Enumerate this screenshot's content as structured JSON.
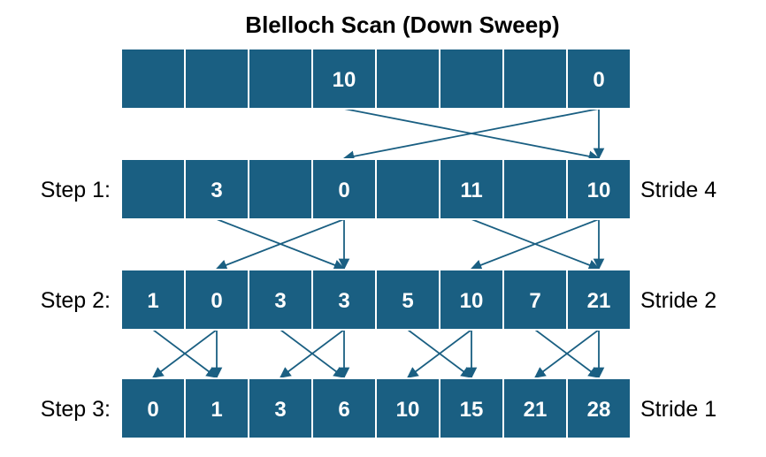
{
  "title": "Blelloch Scan (Down Sweep)",
  "colors": {
    "cell_fill": "#1a5f82",
    "cell_border": "#ffffff",
    "arrow": "#1a5f82",
    "text_on_cell": "#ffffff"
  },
  "rows": [
    {
      "label": "",
      "stride": "",
      "cells": [
        "",
        "",
        "",
        "10",
        "",
        "",
        "",
        "0"
      ]
    },
    {
      "label": "Step 1:",
      "stride": "Stride 4",
      "cells": [
        "",
        "3",
        "",
        "0",
        "",
        "11",
        "",
        "10"
      ]
    },
    {
      "label": "Step 2:",
      "stride": "Stride 2",
      "cells": [
        "1",
        "0",
        "3",
        "3",
        "5",
        "10",
        "7",
        "21"
      ]
    },
    {
      "label": "Step 3:",
      "stride": "Stride 1",
      "cells": [
        "0",
        "1",
        "3",
        "6",
        "10",
        "15",
        "21",
        "28"
      ]
    }
  ],
  "arrows": [
    {
      "from_row": 0,
      "from_col": 3,
      "to_row": 1,
      "to_col": 7
    },
    {
      "from_row": 0,
      "from_col": 7,
      "to_row": 1,
      "to_col": 3
    },
    {
      "from_row": 0,
      "from_col": 7,
      "to_row": 1,
      "to_col": 7
    },
    {
      "from_row": 1,
      "from_col": 1,
      "to_row": 2,
      "to_col": 3
    },
    {
      "from_row": 1,
      "from_col": 3,
      "to_row": 2,
      "to_col": 1
    },
    {
      "from_row": 1,
      "from_col": 3,
      "to_row": 2,
      "to_col": 3
    },
    {
      "from_row": 1,
      "from_col": 5,
      "to_row": 2,
      "to_col": 7
    },
    {
      "from_row": 1,
      "from_col": 7,
      "to_row": 2,
      "to_col": 5
    },
    {
      "from_row": 1,
      "from_col": 7,
      "to_row": 2,
      "to_col": 7
    },
    {
      "from_row": 2,
      "from_col": 0,
      "to_row": 3,
      "to_col": 1
    },
    {
      "from_row": 2,
      "from_col": 1,
      "to_row": 3,
      "to_col": 0
    },
    {
      "from_row": 2,
      "from_col": 1,
      "to_row": 3,
      "to_col": 1
    },
    {
      "from_row": 2,
      "from_col": 2,
      "to_row": 3,
      "to_col": 3
    },
    {
      "from_row": 2,
      "from_col": 3,
      "to_row": 3,
      "to_col": 2
    },
    {
      "from_row": 2,
      "from_col": 3,
      "to_row": 3,
      "to_col": 3
    },
    {
      "from_row": 2,
      "from_col": 4,
      "to_row": 3,
      "to_col": 5
    },
    {
      "from_row": 2,
      "from_col": 5,
      "to_row": 3,
      "to_col": 4
    },
    {
      "from_row": 2,
      "from_col": 5,
      "to_row": 3,
      "to_col": 5
    },
    {
      "from_row": 2,
      "from_col": 6,
      "to_row": 3,
      "to_col": 7
    },
    {
      "from_row": 2,
      "from_col": 7,
      "to_row": 3,
      "to_col": 6
    },
    {
      "from_row": 2,
      "from_col": 7,
      "to_row": 3,
      "to_col": 7
    }
  ]
}
